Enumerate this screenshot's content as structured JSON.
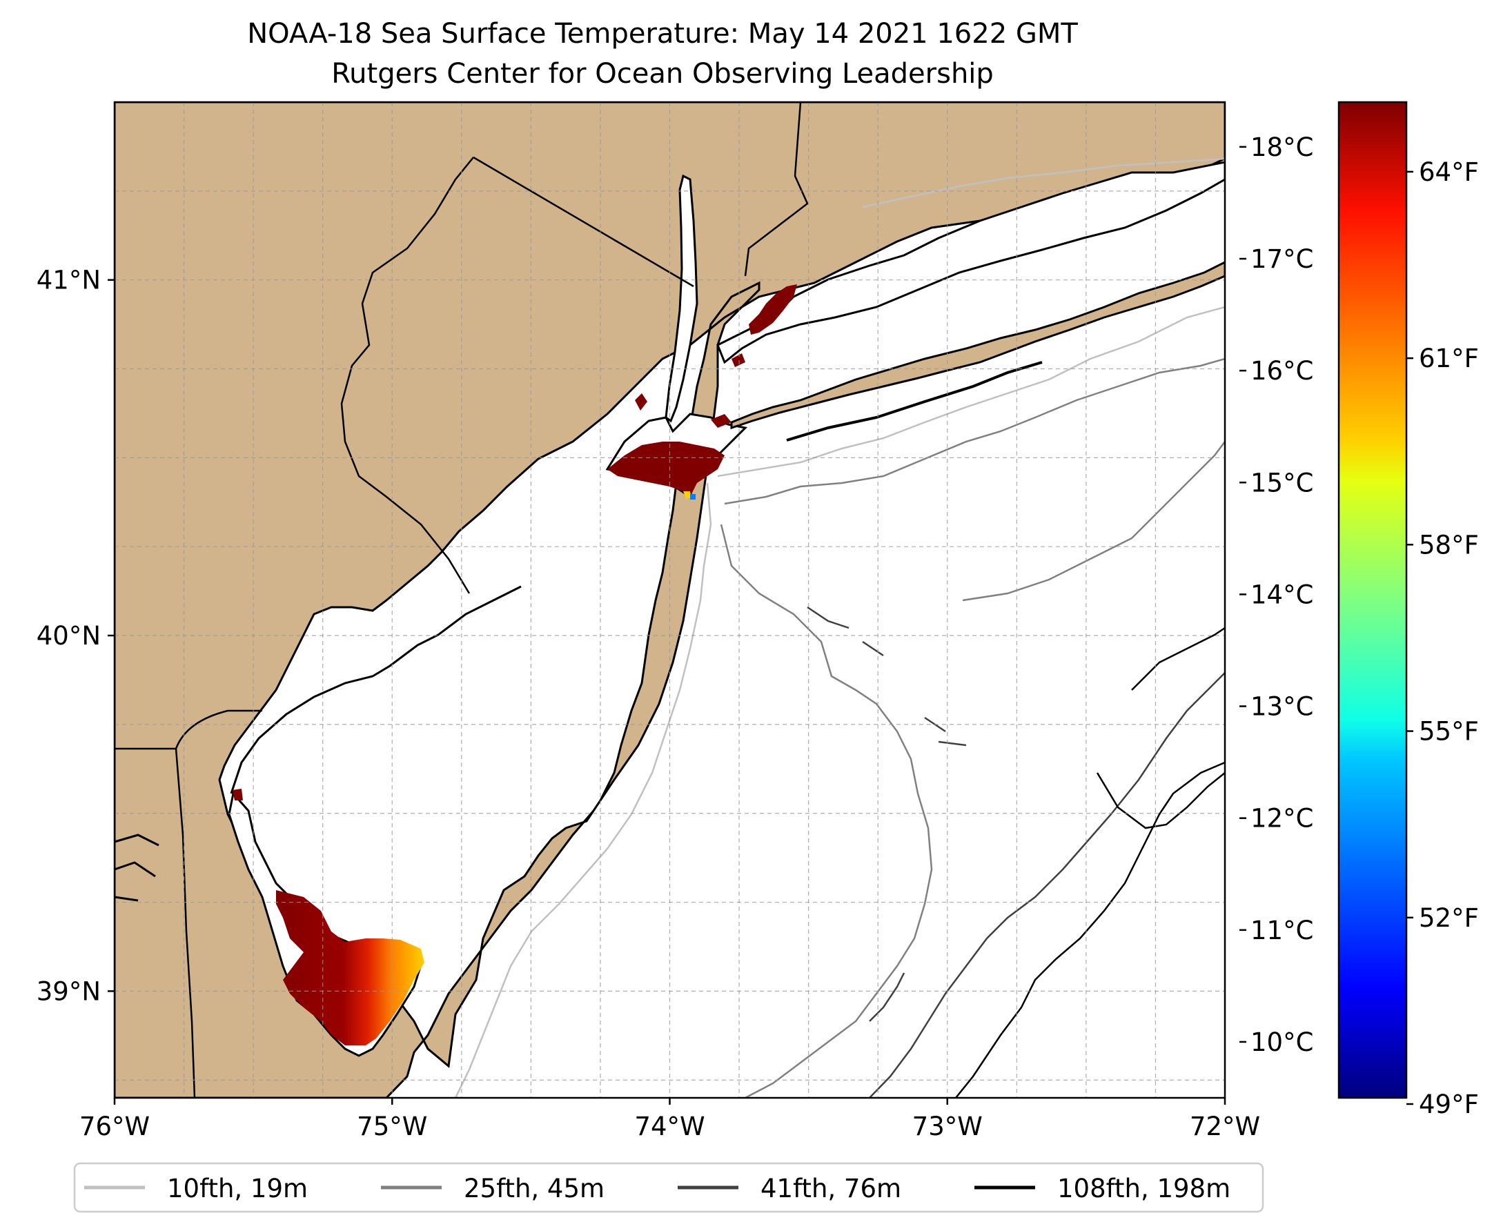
{
  "title": {
    "line1": "NOAA-18 Sea Surface Temperature: May 14 2021 1622 GMT",
    "line2": "Rutgers Center for Ocean Observing Leadership"
  },
  "map": {
    "lon_range": [
      -76,
      -72
    ],
    "lat_range": [
      38.7,
      41.5
    ],
    "x_ticks": [
      {
        "value": -76,
        "label": "76°W"
      },
      {
        "value": -75,
        "label": "75°W"
      },
      {
        "value": -74,
        "label": "74°W"
      },
      {
        "value": -73,
        "label": "73°W"
      },
      {
        "value": -72,
        "label": "72°W"
      }
    ],
    "y_ticks": [
      {
        "value": 39,
        "label": "39°N"
      },
      {
        "value": 40,
        "label": "40°N"
      },
      {
        "value": 41,
        "label": "41°N"
      }
    ],
    "grid": true,
    "grid_minor_step_deg": 0.25,
    "land_color": "#d2b48c",
    "ocean_color": "#ffffff",
    "coastline_color": "#000000"
  },
  "colorbar": {
    "colormap": "jet",
    "celsius_range": [
      9.5,
      18.4
    ],
    "celsius_ticks": [
      {
        "value": 10,
        "label": "10°C"
      },
      {
        "value": 11,
        "label": "11°C"
      },
      {
        "value": 12,
        "label": "12°C"
      },
      {
        "value": 13,
        "label": "13°C"
      },
      {
        "value": 14,
        "label": "14°C"
      },
      {
        "value": 15,
        "label": "15°C"
      },
      {
        "value": 16,
        "label": "16°C"
      },
      {
        "value": 17,
        "label": "17°C"
      },
      {
        "value": 18,
        "label": "18°C"
      }
    ],
    "fahrenheit_ticks": [
      {
        "value": 49,
        "label": "49°F"
      },
      {
        "value": 52,
        "label": "52°F"
      },
      {
        "value": 55,
        "label": "55°F"
      },
      {
        "value": 58,
        "label": "58°F"
      },
      {
        "value": 61,
        "label": "61°F"
      },
      {
        "value": 64,
        "label": "64°F"
      }
    ]
  },
  "legend": {
    "placement": "bottom-center",
    "entries": [
      {
        "label": "10fth, 19m",
        "color": "#c0c0c0"
      },
      {
        "label": "25fth, 45m",
        "color": "#808080"
      },
      {
        "label": "41fth, 76m",
        "color": "#404040"
      },
      {
        "label": "108fth, 198m",
        "color": "#000000"
      }
    ]
  },
  "sst_colors": {
    "dark_red": "#800000",
    "red": "#c00000",
    "orange": "#ff8000",
    "yellow": "#ffd000"
  }
}
